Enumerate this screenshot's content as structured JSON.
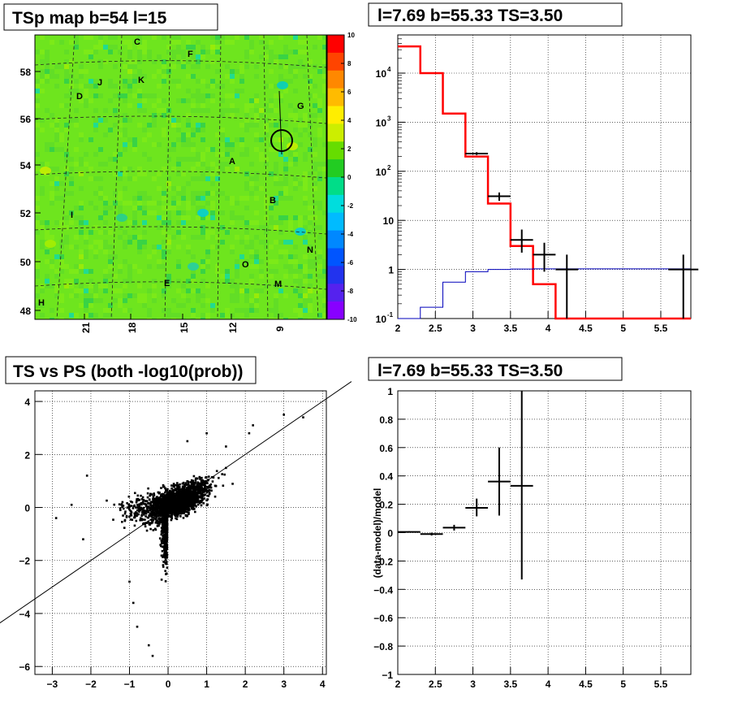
{
  "chart_data": [
    {
      "type": "heatmap",
      "title": "TSp map b=54 l=15",
      "xlabel": "",
      "ylabel": "",
      "x_tick_labels": [
        "21",
        "18",
        "15",
        "12",
        "9"
      ],
      "y_tick_labels": [
        "48",
        "50",
        "52",
        "54",
        "56",
        "58"
      ],
      "colorbar_ticks": [
        "10",
        "8",
        "6",
        "4",
        "2",
        "0",
        "-2",
        "-4",
        "-6",
        "-8",
        "-10"
      ],
      "colorbar_range": [
        -10,
        10
      ],
      "background_value": 0.5,
      "source_labels": [
        "C",
        "F",
        "J",
        "K",
        "D",
        "G",
        "A",
        "B",
        "I",
        "N",
        "O",
        "E",
        "M",
        "H"
      ],
      "marker": "circle",
      "palette": [
        "#ff0000",
        "#ff4400",
        "#ff8800",
        "#ffbb00",
        "#ffee00",
        "#ccee00",
        "#66dd00",
        "#22cc22",
        "#00dd88",
        "#00dddd",
        "#00bbff",
        "#0088ff",
        "#0055ff",
        "#2233ee",
        "#5522ee",
        "#8800ff"
      ]
    },
    {
      "type": "line",
      "title": "l=7.69 b=55.33 TS=3.50",
      "xlabel": "",
      "ylabel": "",
      "yscale": "log",
      "xlim": [
        2,
        5.9
      ],
      "ylim": [
        0.1,
        60000
      ],
      "grid": true,
      "x_tick_labels": [
        "2",
        "2.5",
        "3",
        "3.5",
        "4",
        "4.5",
        "5",
        "5.5"
      ],
      "y_tick_labels": [
        "10^-1",
        "1",
        "10",
        "10^2",
        "10^3",
        "10^4"
      ],
      "series": [
        {
          "type": "step",
          "color": "#ff0000",
          "x_edges": [
            2.0,
            2.3,
            2.6,
            2.9,
            3.2,
            3.5,
            3.8,
            4.1,
            4.4,
            5.9
          ],
          "values": [
            35000,
            10000,
            1500,
            200,
            22,
            3,
            0.5,
            0.1,
            0.1
          ]
        },
        {
          "type": "step",
          "color": "#0000bb",
          "x_edges": [
            2.0,
            2.3,
            2.6,
            2.9,
            3.2,
            3.5,
            3.8,
            4.1,
            4.4,
            5.9
          ],
          "values": [
            0.1,
            0.17,
            0.55,
            0.9,
            1.0,
            1.02,
            1.03,
            1.03,
            1.03
          ]
        },
        {
          "type": "errorbar",
          "color": "#000000",
          "points": [
            {
              "x": 3.05,
              "xerr": 0.15,
              "y": 230,
              "ylo": 215,
              "yhi": 245
            },
            {
              "x": 3.35,
              "xerr": 0.15,
              "y": 31,
              "ylo": 25,
              "yhi": 37
            },
            {
              "x": 3.65,
              "xerr": 0.15,
              "y": 4,
              "ylo": 2.2,
              "yhi": 6.5
            },
            {
              "x": 3.95,
              "xerr": 0.15,
              "y": 2,
              "ylo": 0.9,
              "yhi": 3.5
            },
            {
              "x": 4.25,
              "xerr": 0.15,
              "y": 1,
              "ylo": 0.1,
              "yhi": 2.0
            },
            {
              "x": 5.8,
              "xerr": 0.2,
              "y": 1,
              "ylo": 0.1,
              "yhi": 2.0
            }
          ]
        }
      ]
    },
    {
      "type": "scatter",
      "title": "TS vs PS (both -log10(prob))",
      "xlabel": "",
      "ylabel": "",
      "xlim": [
        -3.45,
        4.1
      ],
      "ylim": [
        -6.3,
        4.4
      ],
      "grid": true,
      "x_tick_labels": [
        "-3",
        "-2",
        "-1",
        "0",
        "1",
        "2",
        "3",
        "4"
      ],
      "y_tick_labels": [
        "-6",
        "-4",
        "-2",
        "0",
        "2",
        "4"
      ],
      "reference_line": {
        "slope": 1,
        "intercept": 0
      },
      "notable_points": [
        {
          "x": 3.0,
          "y": 3.5
        },
        {
          "x": 3.5,
          "y": 3.4
        },
        {
          "x": 2.2,
          "y": 3.1
        },
        {
          "x": 2.1,
          "y": 2.8
        },
        {
          "x": -2.9,
          "y": -0.4
        },
        {
          "x": -2.5,
          "y": 0.1
        },
        {
          "x": -2.1,
          "y": 1.2
        },
        {
          "x": -2.2,
          "y": -1.2
        },
        {
          "x": -1.0,
          "y": -2.8
        },
        {
          "x": -0.8,
          "y": -4.5
        },
        {
          "x": -0.4,
          "y": -5.6
        },
        {
          "x": -0.5,
          "y": -5.2
        },
        {
          "x": -0.9,
          "y": -3.6
        },
        {
          "x": 1.5,
          "y": 2.3
        },
        {
          "x": 1.0,
          "y": 2.8
        },
        {
          "x": 0.5,
          "y": 2.5
        }
      ]
    },
    {
      "type": "line",
      "title": "l=7.69 b=55.33 TS=3.50",
      "xlabel": "",
      "ylabel": "(data-model)/model",
      "xlim": [
        2,
        5.9
      ],
      "ylim": [
        -1,
        1
      ],
      "grid": true,
      "x_tick_labels": [
        "2",
        "2.5",
        "3",
        "3.5",
        "4",
        "4.5",
        "5",
        "5.5"
      ],
      "y_tick_labels": [
        "-1",
        "-0.8",
        "-0.6",
        "-0.4",
        "-0.2",
        "0",
        "0.2",
        "0.4",
        "0.6",
        "0.8",
        "1"
      ],
      "series": [
        {
          "type": "errorbar",
          "color": "#000000",
          "points": [
            {
              "x": 2.15,
              "xerr": 0.15,
              "y": 0.005,
              "ylo": 0.0,
              "yhi": 0.01
            },
            {
              "x": 2.45,
              "xerr": 0.15,
              "y": -0.01,
              "ylo": -0.02,
              "yhi": 0.0
            },
            {
              "x": 2.75,
              "xerr": 0.15,
              "y": 0.035,
              "ylo": 0.015,
              "yhi": 0.055
            },
            {
              "x": 3.05,
              "xerr": 0.15,
              "y": 0.175,
              "ylo": 0.115,
              "yhi": 0.24
            },
            {
              "x": 3.35,
              "xerr": 0.15,
              "y": 0.36,
              "ylo": 0.12,
              "yhi": 0.6
            },
            {
              "x": 3.65,
              "xerr": 0.15,
              "y": 0.33,
              "ylo": -0.33,
              "yhi": 1.0
            }
          ]
        }
      ]
    }
  ]
}
